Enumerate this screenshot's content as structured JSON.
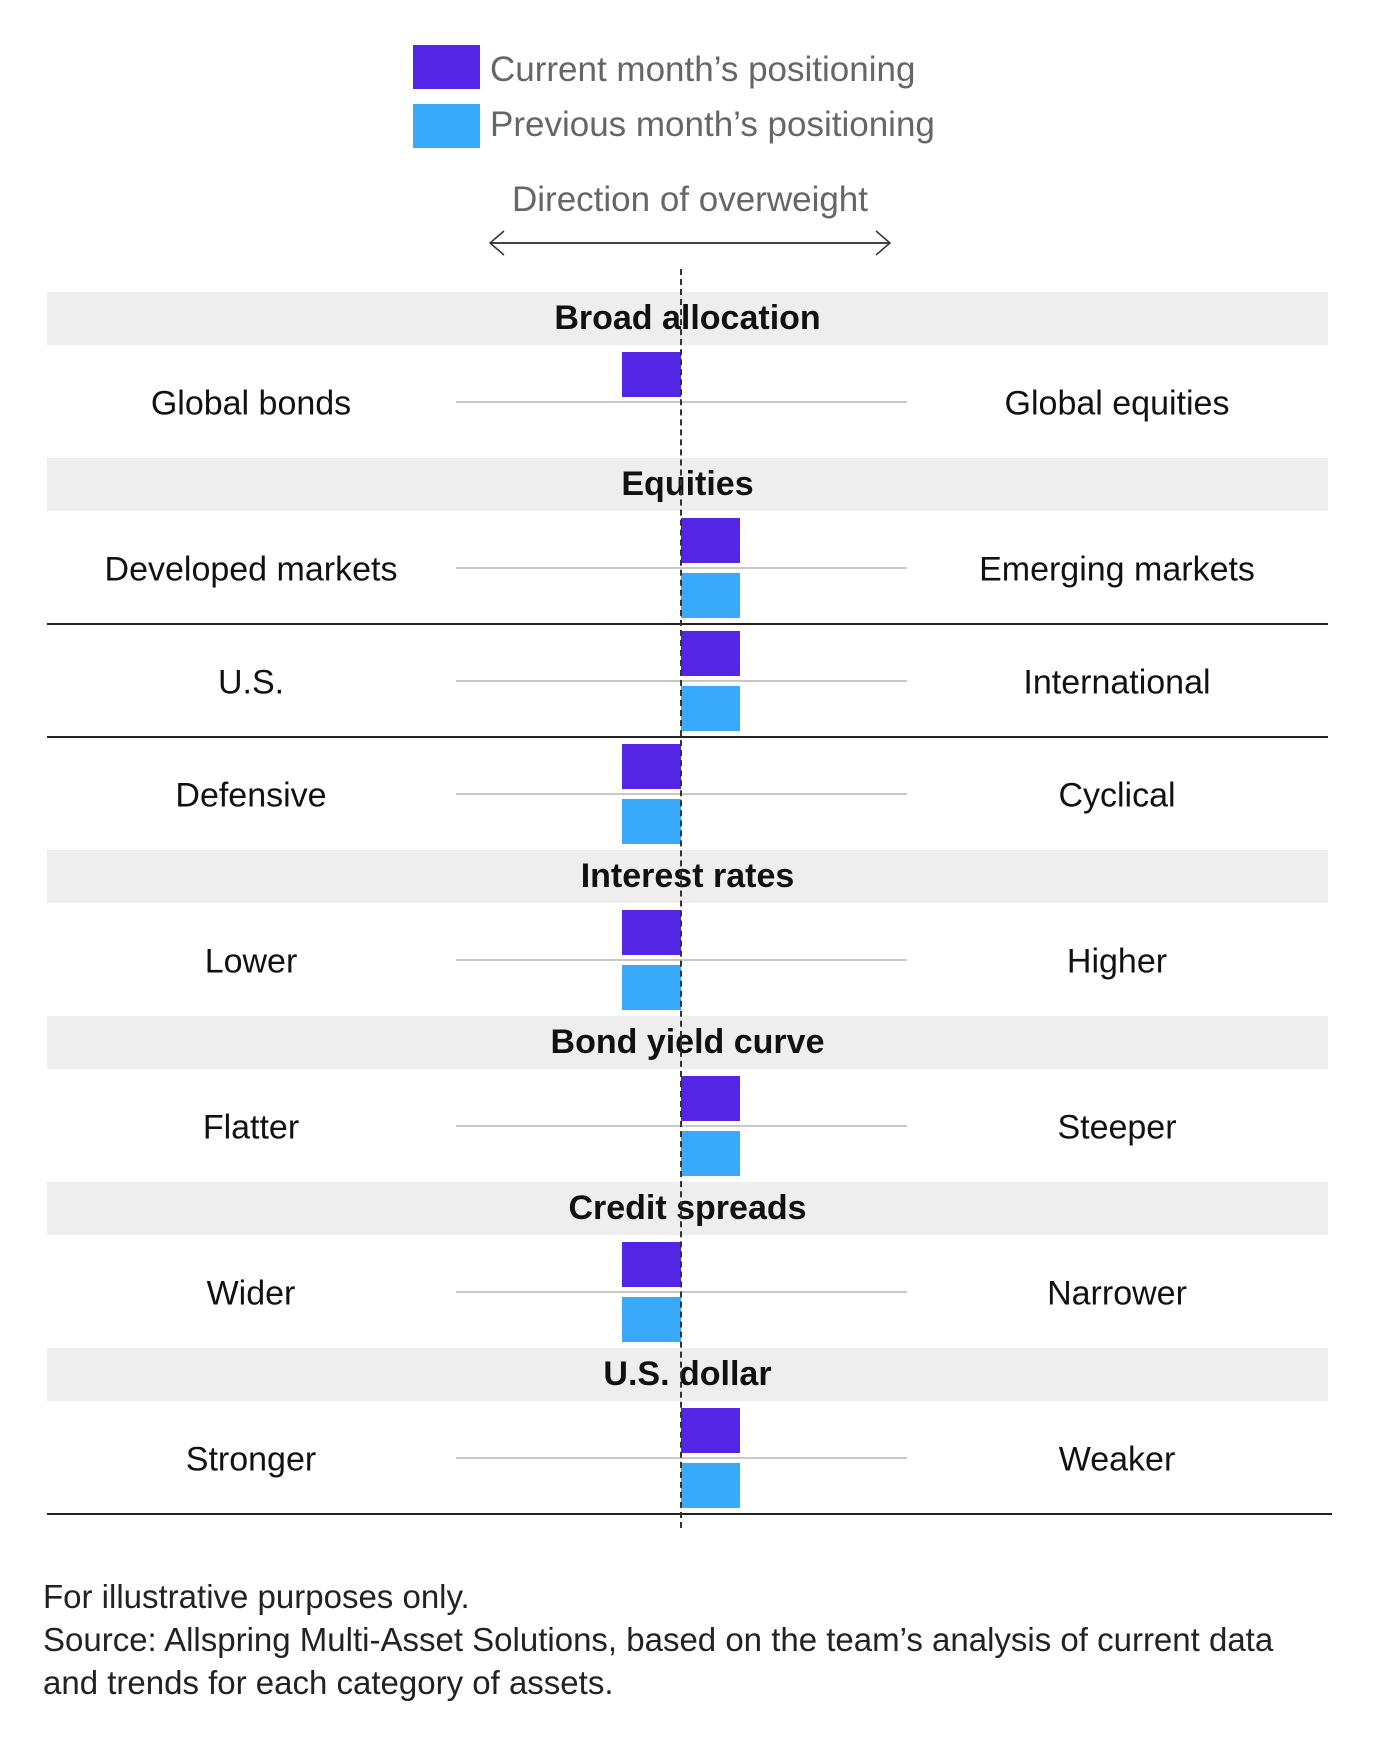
{
  "colors": {
    "current": "#5425e5",
    "previous": "#38a9fb",
    "band": "#eeeeee"
  },
  "chart_data": {
    "type": "table",
    "legend": {
      "current": "Current month’s positioning",
      "previous": "Previous month’s positioning"
    },
    "direction_label": "Direction of overweight",
    "value_scale": "-1 = tilt toward left label, +1 = tilt toward right label",
    "sections": [
      {
        "title": "Broad allocation",
        "rows": [
          {
            "left": "Global bonds",
            "right": "Global equities",
            "current": -1,
            "previous": null
          }
        ]
      },
      {
        "title": "Equities",
        "rows": [
          {
            "left": "Developed markets",
            "right": "Emerging markets",
            "current": 1,
            "previous": 1
          },
          {
            "left": "U.S.",
            "right": "International",
            "current": 1,
            "previous": 1
          },
          {
            "left": "Defensive",
            "right": "Cyclical",
            "current": -1,
            "previous": -1
          }
        ]
      },
      {
        "title": "Interest rates",
        "rows": [
          {
            "left": "Lower",
            "right": "Higher",
            "current": -1,
            "previous": -1
          }
        ]
      },
      {
        "title": "Bond yield curve",
        "rows": [
          {
            "left": "Flatter",
            "right": "Steeper",
            "current": 1,
            "previous": 1
          }
        ]
      },
      {
        "title": "Credit spreads",
        "rows": [
          {
            "left": "Wider",
            "right": "Narrower",
            "current": -1,
            "previous": -1
          }
        ]
      },
      {
        "title": "U.S. dollar",
        "rows": [
          {
            "left": "Stronger",
            "right": "Weaker",
            "current": 1,
            "previous": 1
          }
        ]
      }
    ]
  },
  "footer": {
    "line1": "For illustrative purposes only.",
    "line2": "Source: Allspring Multi-Asset Solutions, based on the team’s analysis of current data",
    "line3": "and trends for each category of assets."
  }
}
